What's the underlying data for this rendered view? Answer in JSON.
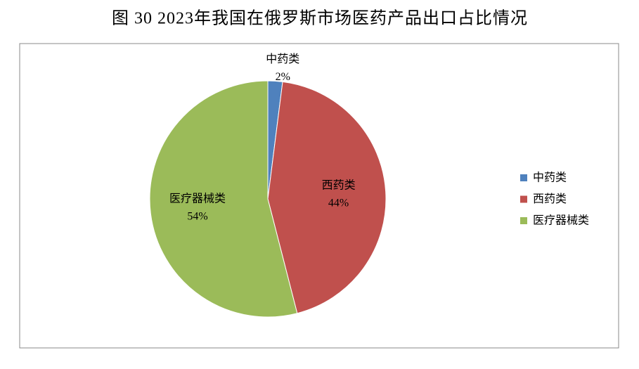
{
  "chart_data": {
    "type": "pie",
    "title": "图 30 2023年我国在俄罗斯市场医药产品出口占比情况",
    "categories": [
      "中药类",
      "西药类",
      "医疗器械类"
    ],
    "values": [
      2,
      44,
      54
    ],
    "value_labels": [
      "2%",
      "44%",
      "54%"
    ],
    "colors": [
      "#4f81bd",
      "#c0504d",
      "#9bbb59"
    ],
    "legend": "right"
  }
}
